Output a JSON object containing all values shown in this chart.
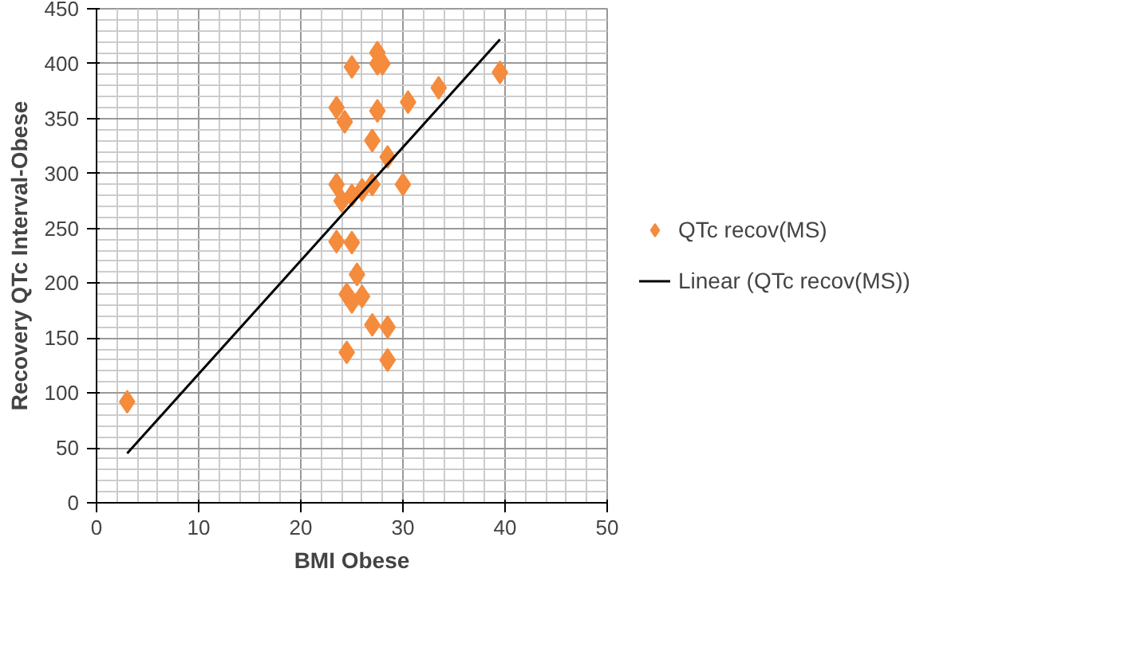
{
  "chart_data": {
    "type": "scatter",
    "xlabel": "BMI Obese",
    "ylabel": "Recovery QTc Interval-Obese",
    "xlim": [
      0,
      50
    ],
    "ylim": [
      0,
      450
    ],
    "xticks": [
      0,
      10,
      20,
      30,
      40,
      50
    ],
    "yticks": [
      0,
      50,
      100,
      150,
      200,
      250,
      300,
      350,
      400,
      450
    ],
    "grid": true,
    "legend": "right",
    "marker": "diamond",
    "series": [
      {
        "name": "QTc recov(MS)",
        "color": "#f58b3c",
        "x": [
          3,
          23.5,
          24.3,
          25,
          27.5,
          27.5,
          28,
          27.5,
          27,
          30.5,
          33.5,
          39.5,
          28.5,
          23.5,
          24,
          25,
          26,
          27,
          30,
          23.5,
          25,
          25.5,
          24.5,
          25,
          26,
          27,
          28.5,
          24.5,
          28.5
        ],
        "values": [
          92,
          360,
          347,
          397,
          410,
          400,
          400,
          357,
          330,
          365,
          378,
          392,
          315,
          290,
          275,
          280,
          285,
          290,
          290,
          238,
          237,
          208,
          190,
          183,
          188,
          162,
          160,
          137,
          130
        ]
      },
      {
        "name": "Linear (QTc recov(MS))",
        "type": "line",
        "color": "#000000",
        "marker": "none",
        "x": [
          3,
          39.5
        ],
        "values": [
          45,
          422
        ]
      }
    ]
  }
}
